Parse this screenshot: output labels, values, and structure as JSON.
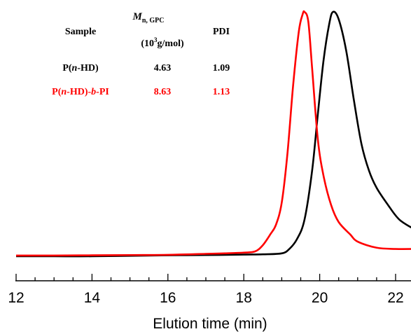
{
  "chart_data": {
    "type": "line",
    "title": "",
    "xlabel": "Elution time (min)",
    "ylabel": "",
    "xlim": [
      12,
      22.5
    ],
    "x_ticks": [
      12,
      14,
      16,
      18,
      20,
      22
    ],
    "x_tick_labels": [
      "12",
      "14",
      "16",
      "18",
      "20",
      "22"
    ],
    "ylim": [
      0,
      1
    ],
    "grid": false,
    "legend": "none",
    "series": [
      {
        "name": "P(n-HD)",
        "color": "#000000",
        "points": [
          [
            12.0,
            0.0
          ],
          [
            13.0,
            0.0
          ],
          [
            14.0,
            0.0
          ],
          [
            15.0,
            0.002
          ],
          [
            16.0,
            0.004
          ],
          [
            17.0,
            0.005
          ],
          [
            18.0,
            0.007
          ],
          [
            18.5,
            0.008
          ],
          [
            19.0,
            0.012
          ],
          [
            19.2,
            0.03
          ],
          [
            19.4,
            0.07
          ],
          [
            19.6,
            0.15
          ],
          [
            19.8,
            0.35
          ],
          [
            19.95,
            0.58
          ],
          [
            20.1,
            0.8
          ],
          [
            20.25,
            0.95
          ],
          [
            20.35,
            1.0
          ],
          [
            20.5,
            0.97
          ],
          [
            20.7,
            0.84
          ],
          [
            20.9,
            0.64
          ],
          [
            21.1,
            0.46
          ],
          [
            21.3,
            0.35
          ],
          [
            21.5,
            0.28
          ],
          [
            21.8,
            0.21
          ],
          [
            22.1,
            0.15
          ],
          [
            22.5,
            0.11
          ]
        ]
      },
      {
        "name": "P(n-HD)-b-PI",
        "color": "#ff0000",
        "points": [
          [
            12.0,
            0.003
          ],
          [
            13.0,
            0.003
          ],
          [
            14.0,
            0.004
          ],
          [
            15.0,
            0.005
          ],
          [
            16.0,
            0.006
          ],
          [
            17.0,
            0.01
          ],
          [
            17.5,
            0.012
          ],
          [
            18.0,
            0.015
          ],
          [
            18.3,
            0.02
          ],
          [
            18.5,
            0.045
          ],
          [
            18.7,
            0.09
          ],
          [
            18.85,
            0.13
          ],
          [
            19.0,
            0.22
          ],
          [
            19.15,
            0.42
          ],
          [
            19.3,
            0.7
          ],
          [
            19.45,
            0.92
          ],
          [
            19.55,
            0.99
          ],
          [
            19.6,
            1.0
          ],
          [
            19.7,
            0.96
          ],
          [
            19.8,
            0.77
          ],
          [
            19.95,
            0.48
          ],
          [
            20.1,
            0.33
          ],
          [
            20.3,
            0.21
          ],
          [
            20.5,
            0.14
          ],
          [
            20.8,
            0.09
          ],
          [
            21.0,
            0.06
          ],
          [
            21.5,
            0.035
          ],
          [
            22.0,
            0.03
          ],
          [
            22.5,
            0.03
          ]
        ]
      }
    ]
  },
  "table": {
    "headers": {
      "sample": "Sample",
      "mn_main": "M",
      "mn_sub": "n, GPC",
      "mn_unit_open": "(10",
      "mn_unit_sup": "3",
      "mn_unit_close": "g/mol)",
      "pdi": "PDI"
    },
    "rows": [
      {
        "color": "#000000",
        "sample_parts": [
          "P(",
          "n",
          "-HD)"
        ],
        "mn": "4.63",
        "pdi": "1.09"
      },
      {
        "color": "#ff0000",
        "sample_parts": [
          "P(",
          "n",
          "-HD)-",
          "b",
          "-PI"
        ],
        "mn": "8.63",
        "pdi": "1.13"
      }
    ]
  }
}
